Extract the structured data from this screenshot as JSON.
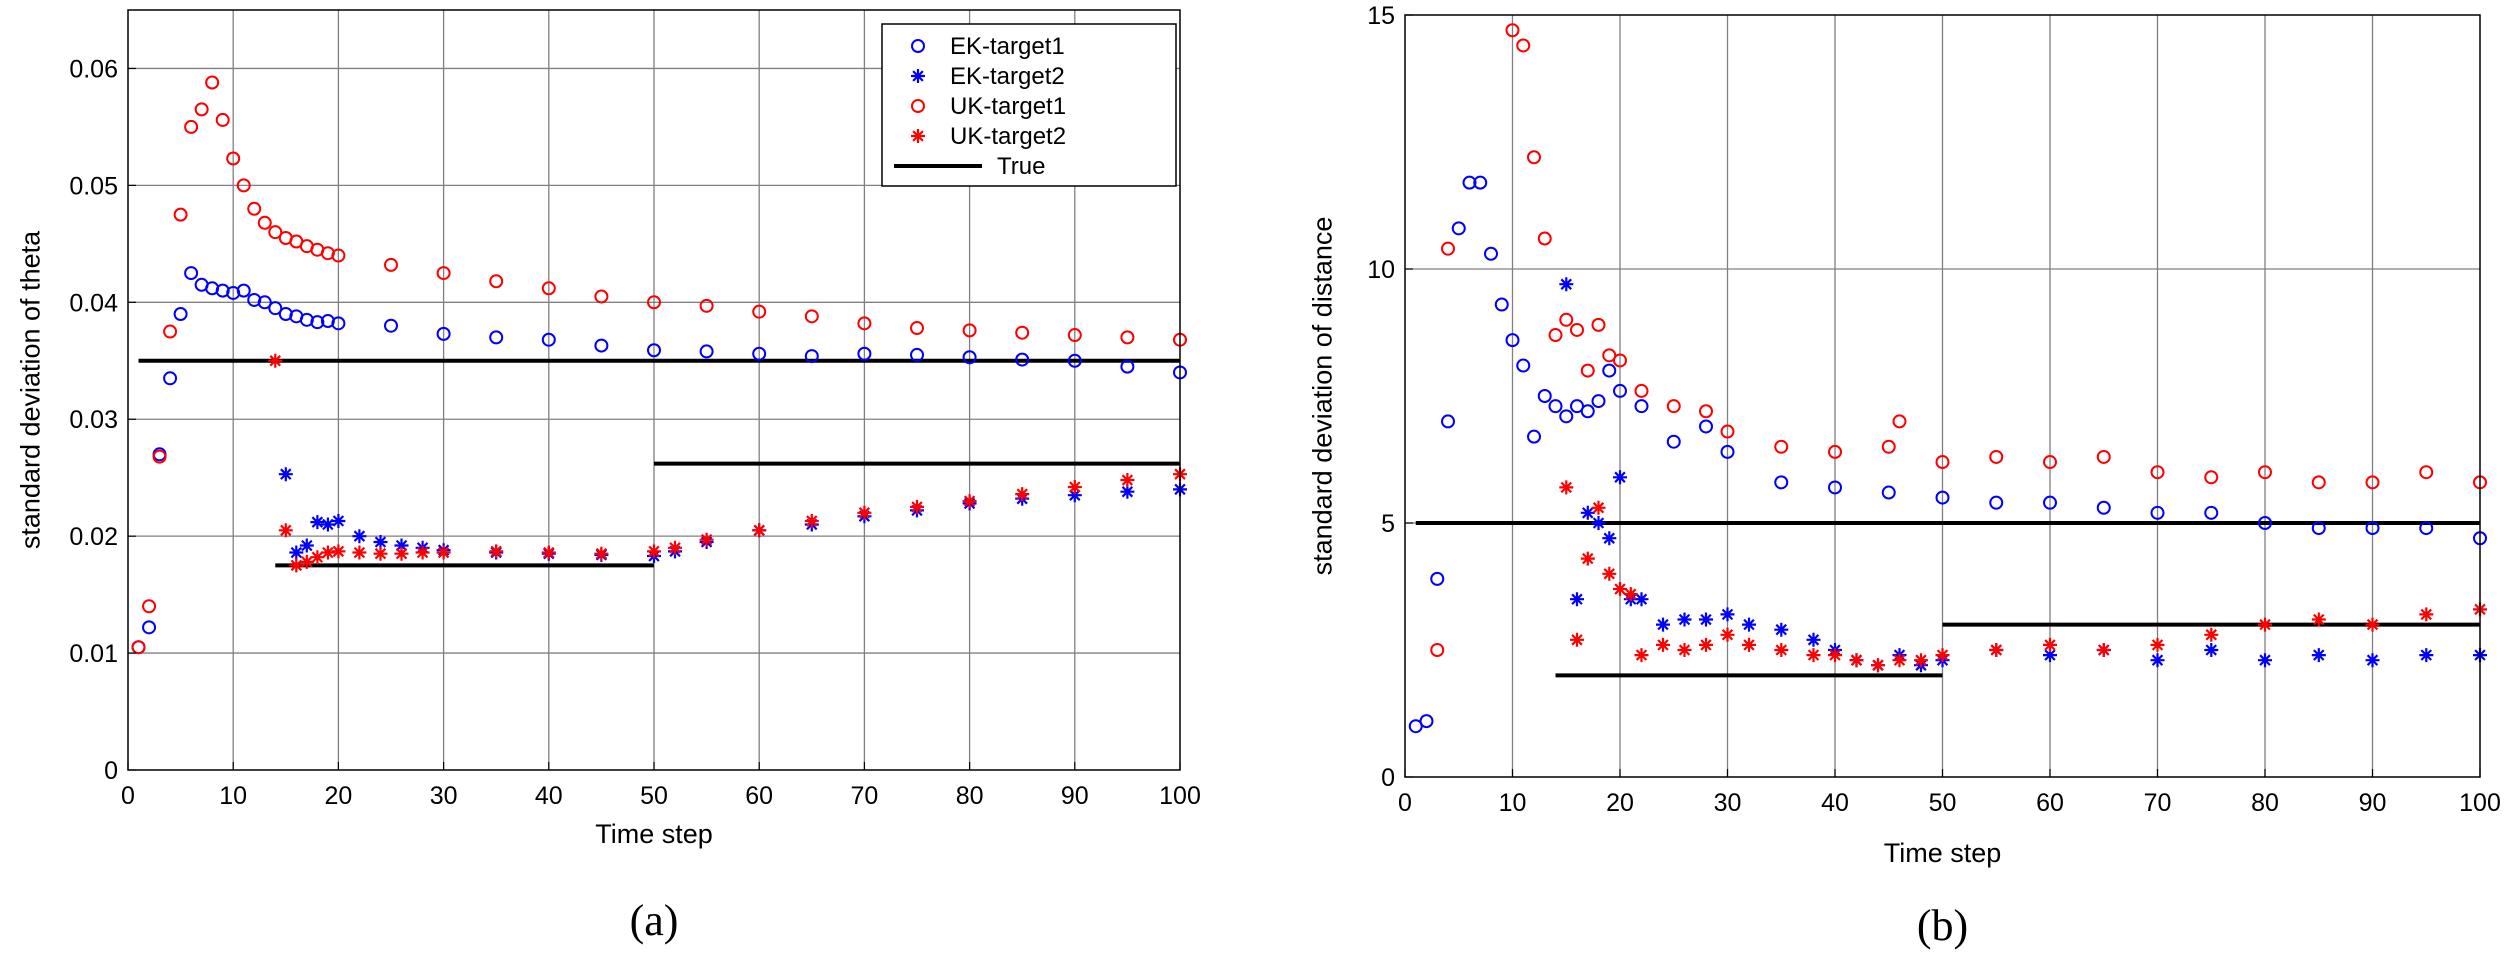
{
  "colors": {
    "blue": "#0000ff",
    "red": "#ff0000",
    "black": "#000000",
    "grid": "#808080"
  },
  "chart_data": [
    {
      "type": "scatter",
      "panel_label": "(a)",
      "xlabel": "Time step",
      "ylabel": "standard deviation of theta",
      "xlim": [
        0,
        100
      ],
      "ylim": [
        0,
        0.065
      ],
      "xticks": [
        0,
        10,
        20,
        30,
        40,
        50,
        60,
        70,
        80,
        90,
        100
      ],
      "xtick_labels": [
        "0",
        "10",
        "20",
        "30",
        "40",
        "50",
        "60",
        "70",
        "80",
        "90",
        "100"
      ],
      "yticks": [
        0,
        0.01,
        0.02,
        0.03,
        0.04,
        0.05,
        0.06
      ],
      "ytick_labels": [
        "0",
        "0.01",
        "0.02",
        "0.03",
        "0.04",
        "0.05",
        "0.06"
      ],
      "grid": true,
      "legend": {
        "placement": "top-right",
        "entries": [
          {
            "label": "EK-target1",
            "marker": "circle",
            "color": "#0000ff"
          },
          {
            "label": "EK-target2",
            "marker": "star",
            "color": "#0000ff"
          },
          {
            "label": "UK-target1",
            "marker": "circle",
            "color": "#ff0000"
          },
          {
            "label": "UK-target2",
            "marker": "star",
            "color": "#ff0000"
          },
          {
            "label": "True",
            "marker": "line",
            "color": "#000000"
          }
        ]
      },
      "series": [
        {
          "name": "EK-target1",
          "marker": "circle",
          "color": "#0000ff",
          "x": [
            1,
            2,
            3,
            4,
            5,
            6,
            7,
            8,
            9,
            10,
            11,
            12,
            13,
            14,
            15,
            16,
            17,
            18,
            19,
            20,
            25,
            30,
            35,
            40,
            45,
            50,
            55,
            60,
            65,
            70,
            75,
            80,
            85,
            90,
            95,
            100
          ],
          "y": [
            0.0105,
            0.0122,
            0.027,
            0.0335,
            0.039,
            0.0425,
            0.0415,
            0.0412,
            0.041,
            0.0408,
            0.041,
            0.0402,
            0.04,
            0.0395,
            0.039,
            0.0388,
            0.0385,
            0.0383,
            0.0384,
            0.0382,
            0.038,
            0.0373,
            0.037,
            0.0368,
            0.0363,
            0.0359,
            0.0358,
            0.0356,
            0.0354,
            0.0356,
            0.0355,
            0.0353,
            0.0351,
            0.035,
            0.0345,
            0.034
          ]
        },
        {
          "name": "EK-target2",
          "marker": "star",
          "color": "#0000ff",
          "x": [
            15,
            16,
            17,
            18,
            19,
            20,
            22,
            24,
            26,
            28,
            30,
            35,
            40,
            45,
            50,
            52,
            55,
            60,
            65,
            70,
            75,
            80,
            85,
            90,
            95,
            100
          ],
          "y": [
            0.0253,
            0.0186,
            0.0192,
            0.0212,
            0.021,
            0.0213,
            0.02,
            0.0195,
            0.0192,
            0.019,
            0.0188,
            0.0186,
            0.0185,
            0.0184,
            0.0183,
            0.0187,
            0.0195,
            0.0205,
            0.021,
            0.0217,
            0.0222,
            0.0228,
            0.0232,
            0.0235,
            0.0238,
            0.024
          ]
        },
        {
          "name": "UK-target1",
          "marker": "circle",
          "color": "#ff0000",
          "x": [
            1,
            2,
            3,
            4,
            5,
            6,
            7,
            8,
            9,
            10,
            11,
            12,
            13,
            14,
            15,
            16,
            17,
            18,
            19,
            20,
            25,
            30,
            35,
            40,
            45,
            50,
            55,
            60,
            65,
            70,
            75,
            80,
            85,
            90,
            95,
            100
          ],
          "y": [
            0.0105,
            0.014,
            0.0268,
            0.0375,
            0.0475,
            0.055,
            0.0565,
            0.0588,
            0.0556,
            0.0523,
            0.05,
            0.048,
            0.0468,
            0.046,
            0.0455,
            0.0452,
            0.0448,
            0.0445,
            0.0442,
            0.044,
            0.0432,
            0.0425,
            0.0418,
            0.0412,
            0.0405,
            0.04,
            0.0397,
            0.0392,
            0.0388,
            0.0382,
            0.0378,
            0.0376,
            0.0374,
            0.0372,
            0.037,
            0.0368
          ]
        },
        {
          "name": "UK-target2",
          "marker": "star",
          "color": "#ff0000",
          "x": [
            14,
            15,
            16,
            17,
            18,
            19,
            20,
            22,
            24,
            26,
            28,
            30,
            35,
            40,
            45,
            50,
            52,
            55,
            60,
            65,
            70,
            75,
            80,
            85,
            90,
            95,
            100
          ],
          "y": [
            0.035,
            0.0205,
            0.0175,
            0.0178,
            0.0182,
            0.0186,
            0.0187,
            0.0186,
            0.0185,
            0.0185,
            0.0186,
            0.0186,
            0.0187,
            0.0186,
            0.0185,
            0.0187,
            0.019,
            0.0197,
            0.0205,
            0.0213,
            0.022,
            0.0225,
            0.023,
            0.0236,
            0.0242,
            0.0248,
            0.0253
          ]
        },
        {
          "name": "True",
          "marker": "line",
          "color": "#000000",
          "segments": [
            [
              [
                1,
                0.035
              ],
              [
                100,
                0.035
              ]
            ],
            [
              [
                14,
                0.0175
              ],
              [
                50,
                0.0175
              ]
            ],
            [
              [
                50,
                0.0262
              ],
              [
                100,
                0.0262
              ]
            ]
          ]
        }
      ]
    },
    {
      "type": "scatter",
      "panel_label": "(b)",
      "xlabel": "Time step",
      "ylabel": "standard deviation of distance",
      "xlim": [
        0,
        100
      ],
      "ylim": [
        0,
        15
      ],
      "xticks": [
        0,
        10,
        20,
        30,
        40,
        50,
        60,
        70,
        80,
        90,
        100
      ],
      "xtick_labels": [
        "0",
        "10",
        "20",
        "30",
        "40",
        "50",
        "60",
        "70",
        "80",
        "90",
        "100"
      ],
      "yticks": [
        0,
        5,
        10,
        15
      ],
      "ytick_labels": [
        "0",
        "5",
        "10",
        "15"
      ],
      "grid": true,
      "series": [
        {
          "name": "EK-target1",
          "marker": "circle",
          "color": "#0000ff",
          "x": [
            1,
            2,
            3,
            4,
            5,
            6,
            7,
            8,
            9,
            10,
            11,
            12,
            13,
            14,
            15,
            16,
            17,
            18,
            19,
            20,
            22,
            25,
            28,
            30,
            35,
            40,
            45,
            50,
            55,
            60,
            65,
            70,
            75,
            80,
            85,
            90,
            95,
            100
          ],
          "y": [
            1.0,
            1.1,
            3.9,
            7.0,
            10.8,
            11.7,
            11.7,
            10.3,
            9.3,
            8.6,
            8.1,
            6.7,
            7.5,
            7.3,
            7.1,
            7.3,
            7.2,
            7.4,
            8.0,
            7.6,
            7.3,
            6.6,
            6.9,
            6.4,
            5.8,
            5.7,
            5.6,
            5.5,
            5.4,
            5.4,
            5.3,
            5.2,
            5.2,
            5.0,
            4.9,
            4.9,
            4.9,
            4.7
          ]
        },
        {
          "name": "EK-target2",
          "marker": "star",
          "color": "#0000ff",
          "x": [
            15,
            16,
            17,
            18,
            19,
            20,
            21,
            22,
            24,
            26,
            28,
            30,
            32,
            35,
            38,
            40,
            42,
            44,
            46,
            48,
            50,
            55,
            60,
            65,
            70,
            75,
            80,
            85,
            90,
            95,
            100
          ],
          "y": [
            9.7,
            3.5,
            5.2,
            5.0,
            4.7,
            5.9,
            3.5,
            3.5,
            3.0,
            3.1,
            3.1,
            3.2,
            3.0,
            2.9,
            2.7,
            2.5,
            2.3,
            2.2,
            2.4,
            2.2,
            2.3,
            2.5,
            2.4,
            2.5,
            2.3,
            2.5,
            2.3,
            2.4,
            2.3,
            2.4,
            2.4
          ]
        },
        {
          "name": "UK-target1",
          "marker": "circle",
          "color": "#ff0000",
          "x": [
            3,
            4,
            10,
            11,
            12,
            13,
            14,
            15,
            16,
            17,
            18,
            19,
            20,
            22,
            25,
            28,
            30,
            35,
            40,
            45,
            46,
            50,
            55,
            60,
            65,
            70,
            75,
            80,
            85,
            90,
            95,
            100
          ],
          "y": [
            2.5,
            10.4,
            14.7,
            14.4,
            12.2,
            10.6,
            8.7,
            9.0,
            8.8,
            8.0,
            8.9,
            8.3,
            8.2,
            7.6,
            7.3,
            7.2,
            6.8,
            6.5,
            6.4,
            6.5,
            7.0,
            6.2,
            6.3,
            6.2,
            6.3,
            6.0,
            5.9,
            6.0,
            5.8,
            5.8,
            6.0,
            5.8
          ]
        },
        {
          "name": "UK-target2",
          "marker": "star",
          "color": "#ff0000",
          "x": [
            15,
            16,
            17,
            18,
            19,
            20,
            21,
            22,
            24,
            26,
            28,
            30,
            32,
            35,
            38,
            40,
            42,
            44,
            46,
            48,
            50,
            55,
            60,
            65,
            70,
            75,
            80,
            85,
            90,
            95,
            100
          ],
          "y": [
            5.7,
            2.7,
            4.3,
            5.3,
            4.0,
            3.7,
            3.6,
            2.4,
            2.6,
            2.5,
            2.6,
            2.8,
            2.6,
            2.5,
            2.4,
            2.4,
            2.3,
            2.2,
            2.3,
            2.3,
            2.4,
            2.5,
            2.6,
            2.5,
            2.6,
            2.8,
            3.0,
            3.1,
            3.0,
            3.2,
            3.3
          ]
        },
        {
          "name": "True",
          "marker": "line",
          "color": "#000000",
          "segments": [
            [
              [
                1,
                5.0
              ],
              [
                100,
                5.0
              ]
            ],
            [
              [
                14,
                2.0
              ],
              [
                50,
                2.0
              ]
            ],
            [
              [
                50,
                3.0
              ],
              [
                100,
                3.0
              ]
            ]
          ]
        }
      ]
    }
  ]
}
